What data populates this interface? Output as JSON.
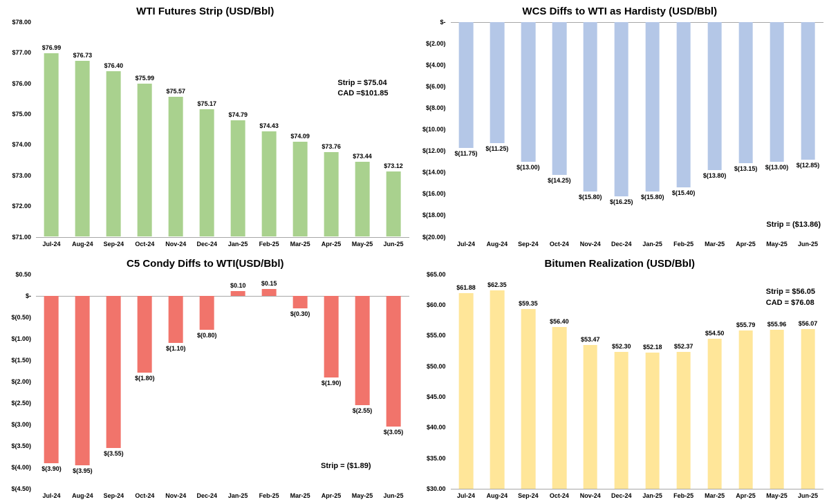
{
  "page": {
    "background": "#ffffff"
  },
  "chart_data": [
    {
      "type": "bar",
      "title": "WTI Futures Strip (USD/Bbl)",
      "color": "#A9D18E",
      "grid": false,
      "categories": [
        "Jul-24",
        "Aug-24",
        "Sep-24",
        "Oct-24",
        "Nov-24",
        "Dec-24",
        "Jan-25",
        "Feb-25",
        "Mar-25",
        "Apr-25",
        "May-25",
        "Jun-25"
      ],
      "values": [
        76.99,
        76.73,
        76.4,
        75.99,
        75.57,
        75.17,
        74.79,
        74.43,
        74.09,
        73.76,
        73.44,
        73.12
      ],
      "value_labels": [
        "$76.99",
        "$76.73",
        "$76.40",
        "$75.99",
        "$75.57",
        "$75.17",
        "$74.79",
        "$74.43",
        "$74.09",
        "$73.76",
        "$73.44",
        "$73.12"
      ],
      "ylim": [
        71,
        78
      ],
      "base": 71,
      "y_ticks": [
        {
          "label": "$78.00",
          "value": 78
        },
        {
          "label": "$77.00",
          "value": 77
        },
        {
          "label": "$76.00",
          "value": 76
        },
        {
          "label": "$75.00",
          "value": 75
        },
        {
          "label": "$74.00",
          "value": 74
        },
        {
          "label": "$73.00",
          "value": 73
        },
        {
          "label": "$72.00",
          "value": 72
        },
        {
          "label": "$71.00",
          "value": 71
        }
      ],
      "annotation": [
        "Strip = $75.04",
        "CAD =$101.85"
      ]
    },
    {
      "type": "bar",
      "title": "WCS Diffs to WTI as Hardisty (USD/Bbl)",
      "color": "#B4C7E7",
      "grid": false,
      "categories": [
        "Jul-24",
        "Aug-24",
        "Sep-24",
        "Oct-24",
        "Nov-24",
        "Dec-24",
        "Jan-25",
        "Feb-25",
        "Mar-25",
        "Apr-25",
        "May-25",
        "Jun-25"
      ],
      "values": [
        -11.75,
        -11.25,
        -13.0,
        -14.25,
        -15.8,
        -16.25,
        -15.8,
        -15.4,
        -13.8,
        -13.15,
        -13.0,
        -12.85
      ],
      "value_labels": [
        "$(11.75)",
        "$(11.25)",
        "$(13.00)",
        "$(14.25)",
        "$(15.80)",
        "$(16.25)",
        "$(15.80)",
        "$(15.40)",
        "$(13.80)",
        "$(13.15)",
        "$(13.00)",
        "$(12.85)"
      ],
      "ylim": [
        -20,
        0
      ],
      "base": 0,
      "y_ticks": [
        {
          "label": "$-",
          "value": 0
        },
        {
          "label": "$(2.00)",
          "value": -2
        },
        {
          "label": "$(4.00)",
          "value": -4
        },
        {
          "label": "$(6.00)",
          "value": -6
        },
        {
          "label": "$(8.00)",
          "value": -8
        },
        {
          "label": "$(10.00)",
          "value": -10
        },
        {
          "label": "$(12.00)",
          "value": -12
        },
        {
          "label": "$(14.00)",
          "value": -14
        },
        {
          "label": "$(16.00)",
          "value": -16
        },
        {
          "label": "$(18.00)",
          "value": -18
        },
        {
          "label": "$(20.00)",
          "value": -20
        }
      ],
      "annotation": [
        "Strip = ($13.86)"
      ]
    },
    {
      "type": "bar",
      "title": "C5 Condy Diffs to WTI(USD/Bbl)",
      "color": "#F1746B",
      "grid": false,
      "categories": [
        "Jul-24",
        "Aug-24",
        "Sep-24",
        "Oct-24",
        "Nov-24",
        "Dec-24",
        "Jan-25",
        "Feb-25",
        "Mar-25",
        "Apr-25",
        "May-25",
        "Jun-25"
      ],
      "values": [
        -3.9,
        -3.95,
        -3.55,
        -1.8,
        -1.1,
        -0.8,
        0.1,
        0.15,
        -0.3,
        -1.9,
        -2.55,
        -3.05
      ],
      "value_labels": [
        "$(3.90)",
        "$(3.95)",
        "$(3.55)",
        "$(1.80)",
        "$(1.10)",
        "$(0.80)",
        "$0.10",
        "$0.15",
        "$(0.30)",
        "$(1.90)",
        "$(2.55)",
        "$(3.05)"
      ],
      "ylim": [
        -4.5,
        0.5
      ],
      "base": 0,
      "y_ticks": [
        {
          "label": "$0.50",
          "value": 0.5
        },
        {
          "label": "$-",
          "value": 0
        },
        {
          "label": "$(0.50)",
          "value": -0.5
        },
        {
          "label": "$(1.00)",
          "value": -1
        },
        {
          "label": "$(1.50)",
          "value": -1.5
        },
        {
          "label": "$(2.00)",
          "value": -2
        },
        {
          "label": "$(2.50)",
          "value": -2.5
        },
        {
          "label": "$(3.00)",
          "value": -3
        },
        {
          "label": "$(3.50)",
          "value": -3.5
        },
        {
          "label": "$(4.00)",
          "value": -4
        },
        {
          "label": "$(4.50)",
          "value": -4.5
        }
      ],
      "annotation": [
        "Strip = ($1.89)"
      ]
    },
    {
      "type": "bar",
      "title": "Bitumen Realization (USD/Bbl)",
      "color": "#FFE699",
      "grid": false,
      "categories": [
        "Jul-24",
        "Aug-24",
        "Sep-24",
        "Oct-24",
        "Nov-24",
        "Dec-24",
        "Jan-25",
        "Feb-25",
        "Mar-25",
        "Apr-25",
        "May-25",
        "Jun-25"
      ],
      "values": [
        61.88,
        62.35,
        59.35,
        56.4,
        53.47,
        52.3,
        52.18,
        52.37,
        54.5,
        55.79,
        55.96,
        56.07
      ],
      "value_labels": [
        "$61.88",
        "$62.35",
        "$59.35",
        "$56.40",
        "$53.47",
        "$52.30",
        "$52.18",
        "$52.37",
        "$54.50",
        "$55.79",
        "$55.96",
        "$56.07"
      ],
      "ylim": [
        30,
        65
      ],
      "base": 30,
      "y_ticks": [
        {
          "label": "$65.00",
          "value": 65
        },
        {
          "label": "$60.00",
          "value": 60
        },
        {
          "label": "$55.00",
          "value": 55
        },
        {
          "label": "$50.00",
          "value": 50
        },
        {
          "label": "$45.00",
          "value": 45
        },
        {
          "label": "$40.00",
          "value": 40
        },
        {
          "label": "$35.00",
          "value": 35
        },
        {
          "label": "$30.00",
          "value": 30
        }
      ],
      "annotation": [
        "Strip = $56.05",
        "CAD = $76.08"
      ]
    }
  ]
}
